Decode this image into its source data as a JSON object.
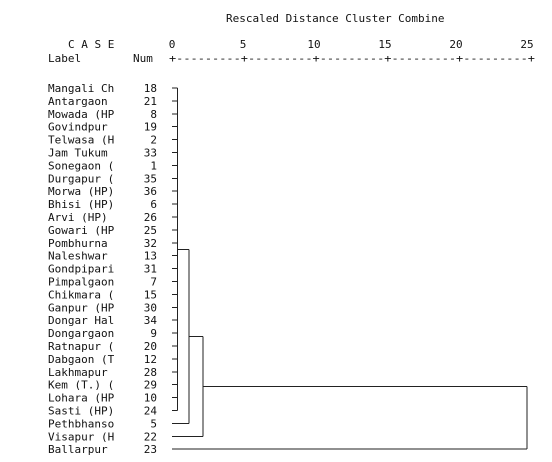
{
  "chart_data": {
    "type": "dendrogram",
    "title": "Rescaled Distance Cluster Combine",
    "case_header": "C A S E",
    "label_header": "Label",
    "num_header": "Num",
    "axis_ticks": [
      0,
      5,
      10,
      15,
      20,
      25
    ],
    "axis_ruler": "+---------+---------+---------+---------+---------+",
    "xlim": [
      0,
      25
    ],
    "cases": [
      {
        "label": "Mangali Ch",
        "num": 18
      },
      {
        "label": "Antargaon",
        "num": 21
      },
      {
        "label": "Mowada (HP",
        "num": 8
      },
      {
        "label": "Govindpur",
        "num": 19
      },
      {
        "label": "Telwasa (H",
        "num": 2
      },
      {
        "label": "Jam Tukum",
        "num": 33
      },
      {
        "label": "Sonegaon (",
        "num": 1
      },
      {
        "label": "Durgapur (",
        "num": 35
      },
      {
        "label": "Morwa (HP)",
        "num": 36
      },
      {
        "label": "Bhisi (HP)",
        "num": 6
      },
      {
        "label": "Arvi (HP)",
        "num": 26
      },
      {
        "label": "Gowari (HP",
        "num": 25
      },
      {
        "label": "Pombhurna",
        "num": 32
      },
      {
        "label": "Naleshwar",
        "num": 13
      },
      {
        "label": "Gondpipari",
        "num": 31
      },
      {
        "label": "Pimpalgaon",
        "num": 7
      },
      {
        "label": "Chikmara (",
        "num": 15
      },
      {
        "label": "Ganpur (HP",
        "num": 30
      },
      {
        "label": "Dongar Hal",
        "num": 34
      },
      {
        "label": "Dongargaon",
        "num": 9
      },
      {
        "label": "Ratnapur (",
        "num": 20
      },
      {
        "label": "Dabgaon (T",
        "num": 12
      },
      {
        "label": "Lakhmapur",
        "num": 28
      },
      {
        "label": "Kem (T.) (",
        "num": 29
      },
      {
        "label": "Lohara (HP",
        "num": 10
      },
      {
        "label": "Sasti (HP)",
        "num": 24
      },
      {
        "label": "Pethbhanso",
        "num": 5
      },
      {
        "label": "Visapur (H",
        "num": 22
      },
      {
        "label": "Ballarpur",
        "num": 23
      }
    ],
    "merges": [
      {
        "members_from": 0,
        "members_to": 25,
        "distance": 0.4
      },
      {
        "members_from": 0,
        "members_to": 26,
        "distance": 1.2
      },
      {
        "members_from": 0,
        "members_to": 27,
        "distance": 2.2
      },
      {
        "members_from": 0,
        "members_to": 28,
        "distance": 25
      }
    ]
  }
}
